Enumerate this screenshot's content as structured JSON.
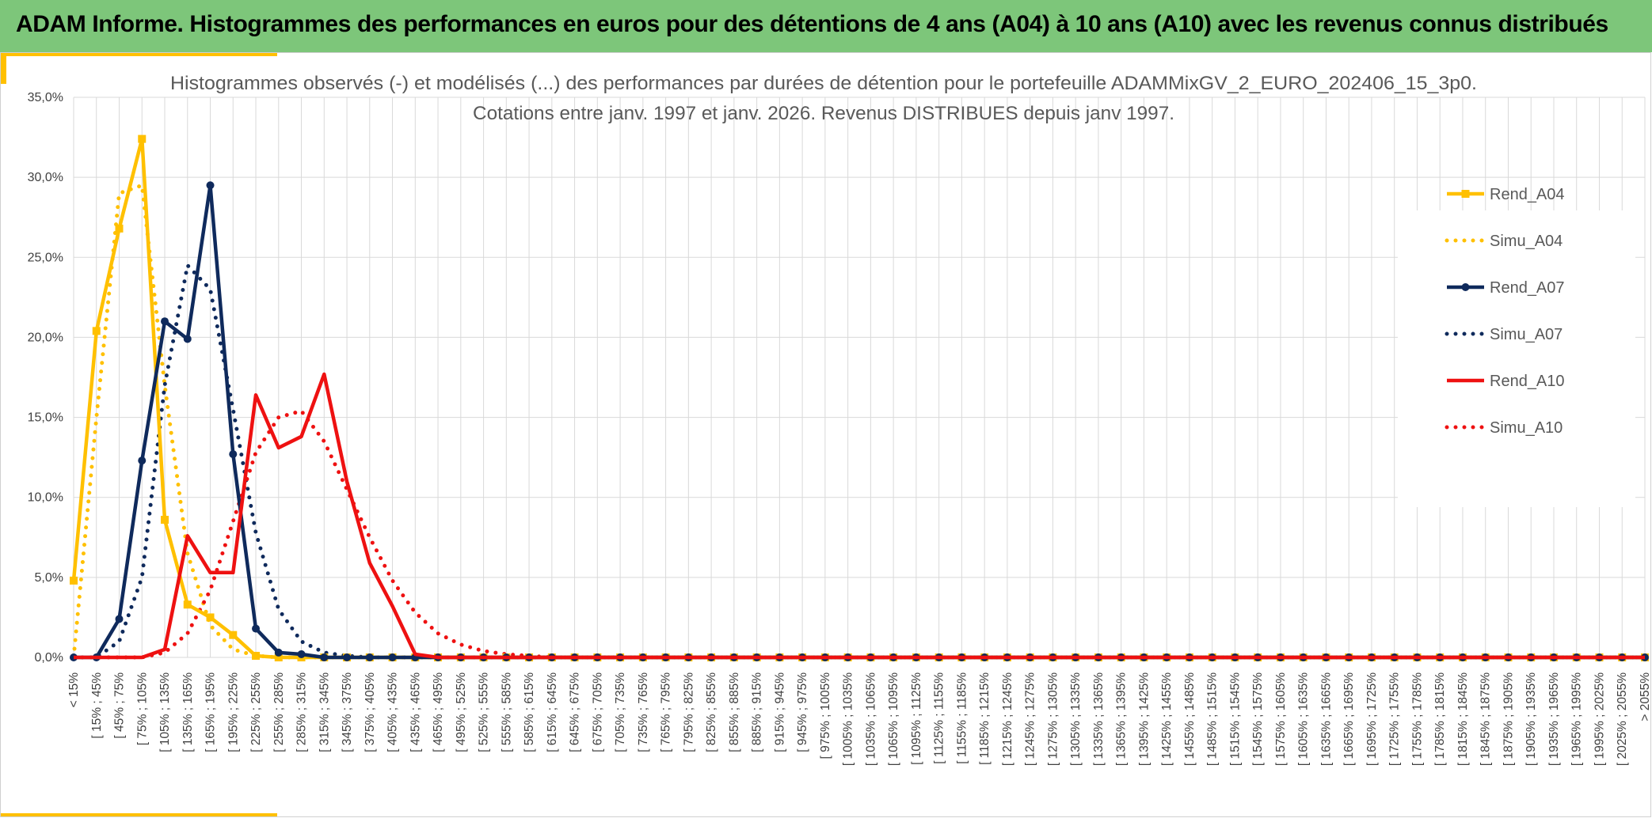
{
  "header": {
    "title": "ADAM Informe. Histogrammes des performances en euros pour des détentions de 4 ans (A04) à 10 ans (A10) avec les revenus connus distribués"
  },
  "colors": {
    "banner": "#7dc67a",
    "accent": "#ffc000",
    "A04": "#ffc000",
    "A07": "#0f2a5c",
    "A10": "#ee1111"
  },
  "chart_data": {
    "type": "line",
    "title": "Histogrammes observés (-) et modélisés (...) des performances par durées de détention pour le portefeuille ADAMMixGV_2_EURO_202406_15_3p0.",
    "subtitle": "Cotations entre janv. 1997 et janv. 2026. Revenus DISTRIBUES depuis janv 1997.",
    "y_ticks": [
      "0,0%",
      "5,0%",
      "10,0%",
      "15,0%",
      "20,0%",
      "25,0%",
      "30,0%",
      "35,0%"
    ],
    "ylim": [
      0,
      35
    ],
    "grid": true,
    "legend_position": "right",
    "categories": [
      "< 15%",
      "[ 15% ; 45%",
      "[ 45% ; 75%",
      "[ 75% ; 105%",
      "[ 105% ; 135%",
      "[ 135% ; 165%",
      "[ 165% ; 195%",
      "[ 195% ; 225%",
      "[ 225% ; 255%",
      "[ 255% ; 285%",
      "[ 285% ; 315%",
      "[ 315% ; 345%",
      "[ 345% ; 375%",
      "[ 375% ; 405%",
      "[ 405% ; 435%",
      "[ 435% ; 465%",
      "[ 465% ; 495%",
      "[ 495% ; 525%",
      "[ 525% ; 555%",
      "[ 555% ; 585%",
      "[ 585% ; 615%",
      "[ 615% ; 645%",
      "[ 645% ; 675%",
      "[ 675% ; 705%",
      "[ 705% ; 735%",
      "[ 735% ; 765%",
      "[ 765% ; 795%",
      "[ 795% ; 825%",
      "[ 825% ; 855%",
      "[ 855% ; 885%",
      "[ 885% ; 915%",
      "[ 915% ; 945%",
      "[ 945% ; 975%",
      "[ 975% ; 1005%",
      "[ 1005% ; 1035%",
      "[ 1035% ; 1065%",
      "[ 1065% ; 1095%",
      "[ 1095% ; 1125%",
      "[ 1125% ; 1155%",
      "[ 1155% ; 1185%",
      "[ 1185% ; 1215%",
      "[ 1215% ; 1245%",
      "[ 1245% ; 1275%",
      "[ 1275% ; 1305%",
      "[ 1305% ; 1335%",
      "[ 1335% ; 1365%",
      "[ 1365% ; 1395%",
      "[ 1395% ; 1425%",
      "[ 1425% ; 1455%",
      "[ 1455% ; 1485%",
      "[ 1485% ; 1515%",
      "[ 1515% ; 1545%",
      "[ 1545% ; 1575%",
      "[ 1575% ; 1605%",
      "[ 1605% ; 1635%",
      "[ 1635% ; 1665%",
      "[ 1665% ; 1695%",
      "[ 1695% ; 1725%",
      "[ 1725% ; 1755%",
      "[ 1755% ; 1785%",
      "[ 1785% ; 1815%",
      "[ 1815% ; 1845%",
      "[ 1845% ; 1875%",
      "[ 1875% ; 1905%",
      "[ 1905% ; 1935%",
      "[ 1935% ; 1965%",
      "[ 1965% ; 1995%",
      "[ 1995% ; 2025%",
      "[ 2025% ; 2055%",
      "> 2055%"
    ],
    "series": [
      {
        "name": "Rend_A04",
        "style": "solid",
        "marker": "square",
        "color": "#ffc000",
        "values": [
          4.8,
          20.4,
          26.8,
          32.4,
          8.6,
          3.3,
          2.5,
          1.4,
          0.1,
          0.0,
          0.0,
          0.0,
          0.0,
          0.0,
          0.0,
          0.0,
          0.0,
          0.0,
          0.0,
          0.0,
          0.0,
          0.0,
          0.0,
          0.0,
          0.0,
          0.0,
          0.0,
          0.0,
          0.0,
          0.0,
          0.0,
          0.0,
          0.0,
          0.0,
          0.0,
          0.0,
          0.0,
          0.0,
          0.0,
          0.0,
          0.0,
          0.0,
          0.0,
          0.0,
          0.0,
          0.0,
          0.0,
          0.0,
          0.0,
          0.0,
          0.0,
          0.0,
          0.0,
          0.0,
          0.0,
          0.0,
          0.0,
          0.0,
          0.0,
          0.0,
          0.0,
          0.0,
          0.0,
          0.0,
          0.0,
          0.0,
          0.0,
          0.0,
          0.0,
          0.0
        ]
      },
      {
        "name": "Simu_A04",
        "style": "dotted",
        "marker": "none",
        "color": "#ffc000",
        "values": [
          0.0,
          15.0,
          29.0,
          29.5,
          17.0,
          6.5,
          2.0,
          0.5,
          0.1,
          0.0,
          0.0,
          0.0,
          0.0,
          0.0,
          0.0,
          0.0,
          0.0,
          0.0,
          0.0,
          0.0,
          0.0,
          0.0,
          0.0,
          0.0,
          0.0,
          0.0,
          0.0,
          0.0,
          0.0,
          0.0,
          0.0,
          0.0,
          0.0,
          0.0,
          0.0,
          0.0,
          0.0,
          0.0,
          0.0,
          0.0,
          0.0,
          0.0,
          0.0,
          0.0,
          0.0,
          0.0,
          0.0,
          0.0,
          0.0,
          0.0,
          0.0,
          0.0,
          0.0,
          0.0,
          0.0,
          0.0,
          0.0,
          0.0,
          0.0,
          0.0,
          0.0,
          0.0,
          0.0,
          0.0,
          0.0,
          0.0,
          0.0,
          0.0,
          0.0,
          0.0
        ]
      },
      {
        "name": "Rend_A07",
        "style": "solid",
        "marker": "circle",
        "color": "#0f2a5c",
        "values": [
          0.0,
          0.0,
          2.4,
          12.3,
          21.0,
          19.9,
          29.5,
          12.7,
          1.8,
          0.3,
          0.2,
          0.0,
          0.0,
          0.0,
          0.0,
          0.0,
          0.0,
          0.0,
          0.0,
          0.0,
          0.0,
          0.0,
          0.0,
          0.0,
          0.0,
          0.0,
          0.0,
          0.0,
          0.0,
          0.0,
          0.0,
          0.0,
          0.0,
          0.0,
          0.0,
          0.0,
          0.0,
          0.0,
          0.0,
          0.0,
          0.0,
          0.0,
          0.0,
          0.0,
          0.0,
          0.0,
          0.0,
          0.0,
          0.0,
          0.0,
          0.0,
          0.0,
          0.0,
          0.0,
          0.0,
          0.0,
          0.0,
          0.0,
          0.0,
          0.0,
          0.0,
          0.0,
          0.0,
          0.0,
          0.0,
          0.0,
          0.0,
          0.0,
          0.0,
          0.0
        ]
      },
      {
        "name": "Simu_A07",
        "style": "dotted",
        "marker": "none",
        "color": "#0f2a5c",
        "values": [
          0.0,
          0.0,
          1.0,
          5.0,
          17.0,
          24.5,
          23.0,
          15.5,
          7.8,
          3.0,
          1.0,
          0.3,
          0.1,
          0.0,
          0.0,
          0.0,
          0.0,
          0.0,
          0.0,
          0.0,
          0.0,
          0.0,
          0.0,
          0.0,
          0.0,
          0.0,
          0.0,
          0.0,
          0.0,
          0.0,
          0.0,
          0.0,
          0.0,
          0.0,
          0.0,
          0.0,
          0.0,
          0.0,
          0.0,
          0.0,
          0.0,
          0.0,
          0.0,
          0.0,
          0.0,
          0.0,
          0.0,
          0.0,
          0.0,
          0.0,
          0.0,
          0.0,
          0.0,
          0.0,
          0.0,
          0.0,
          0.0,
          0.0,
          0.0,
          0.0,
          0.0,
          0.0,
          0.0,
          0.0,
          0.0,
          0.0,
          0.0,
          0.0,
          0.0,
          0.0
        ]
      },
      {
        "name": "Rend_A10",
        "style": "solid",
        "marker": "none",
        "color": "#ee1111",
        "values": [
          0.0,
          0.0,
          0.0,
          0.0,
          0.5,
          7.6,
          5.3,
          5.3,
          16.4,
          13.1,
          13.8,
          17.7,
          11.0,
          5.9,
          3.2,
          0.2,
          0.0,
          0.0,
          0.0,
          0.0,
          0.0,
          0.0,
          0.0,
          0.0,
          0.0,
          0.0,
          0.0,
          0.0,
          0.0,
          0.0,
          0.0,
          0.0,
          0.0,
          0.0,
          0.0,
          0.0,
          0.0,
          0.0,
          0.0,
          0.0,
          0.0,
          0.0,
          0.0,
          0.0,
          0.0,
          0.0,
          0.0,
          0.0,
          0.0,
          0.0,
          0.0,
          0.0,
          0.0,
          0.0,
          0.0,
          0.0,
          0.0,
          0.0,
          0.0,
          0.0,
          0.0,
          0.0,
          0.0,
          0.0,
          0.0,
          0.0,
          0.0,
          0.0,
          0.0,
          0.0
        ]
      },
      {
        "name": "Simu_A10",
        "style": "dotted",
        "marker": "none",
        "color": "#ee1111",
        "values": [
          0.0,
          0.0,
          0.0,
          0.0,
          0.3,
          1.5,
          4.2,
          8.5,
          12.8,
          15.0,
          15.4,
          13.5,
          10.5,
          7.5,
          4.8,
          2.8,
          1.5,
          0.8,
          0.4,
          0.2,
          0.1,
          0.0,
          0.0,
          0.0,
          0.0,
          0.0,
          0.0,
          0.0,
          0.0,
          0.0,
          0.0,
          0.0,
          0.0,
          0.0,
          0.0,
          0.0,
          0.0,
          0.0,
          0.0,
          0.0,
          0.0,
          0.0,
          0.0,
          0.0,
          0.0,
          0.0,
          0.0,
          0.0,
          0.0,
          0.0,
          0.0,
          0.0,
          0.0,
          0.0,
          0.0,
          0.0,
          0.0,
          0.0,
          0.0,
          0.0,
          0.0,
          0.0,
          0.0,
          0.0,
          0.0,
          0.0,
          0.0,
          0.0,
          0.0,
          0.0
        ]
      }
    ]
  }
}
